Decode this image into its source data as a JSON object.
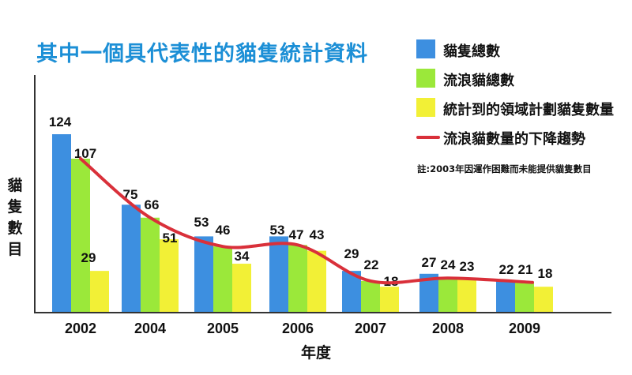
{
  "title": "其中一個具代表性的貓隻統計資料",
  "note": "註:2003年因運作困難而未能提供貓隻數目",
  "colors": {
    "total": "#3d8fe0",
    "stray": "#9be83a",
    "tnr": "#f2f036",
    "trend": "#d9303a",
    "title": "#1c8fd6"
  },
  "legend": [
    {
      "label": "貓隻總數",
      "color": "#3d8fe0",
      "type": "box"
    },
    {
      "label": "流浪貓總數",
      "color": "#9be83a",
      "type": "box"
    },
    {
      "label": "統計到的領域計劃貓隻數量",
      "color": "#f2f036",
      "type": "box"
    },
    {
      "label": "流浪貓數量的下降趨勢",
      "color": "#d9303a",
      "type": "line"
    }
  ],
  "chart_data": {
    "type": "bar",
    "title": "其中一個具代表性的貓隻統計資料",
    "xlabel": "年度",
    "ylabel": "貓隻數目",
    "categories": [
      "2002",
      "2004",
      "2005",
      "2006",
      "2007",
      "2008",
      "2009"
    ],
    "series": [
      {
        "name": "貓隻總數",
        "values": [
          124,
          75,
          53,
          53,
          29,
          27,
          22
        ]
      },
      {
        "name": "流浪貓總數",
        "values": [
          107,
          66,
          46,
          47,
          22,
          24,
          21
        ]
      },
      {
        "name": "統計到的領域計劃貓隻數量",
        "values": [
          29,
          51,
          34,
          43,
          18,
          23,
          18
        ]
      }
    ],
    "trend_line": {
      "name": "流浪貓數量的下降趨勢",
      "follows": "流浪貓總數"
    },
    "ylim": [
      0,
      130
    ],
    "grid": false,
    "legend_position": "top-right"
  }
}
